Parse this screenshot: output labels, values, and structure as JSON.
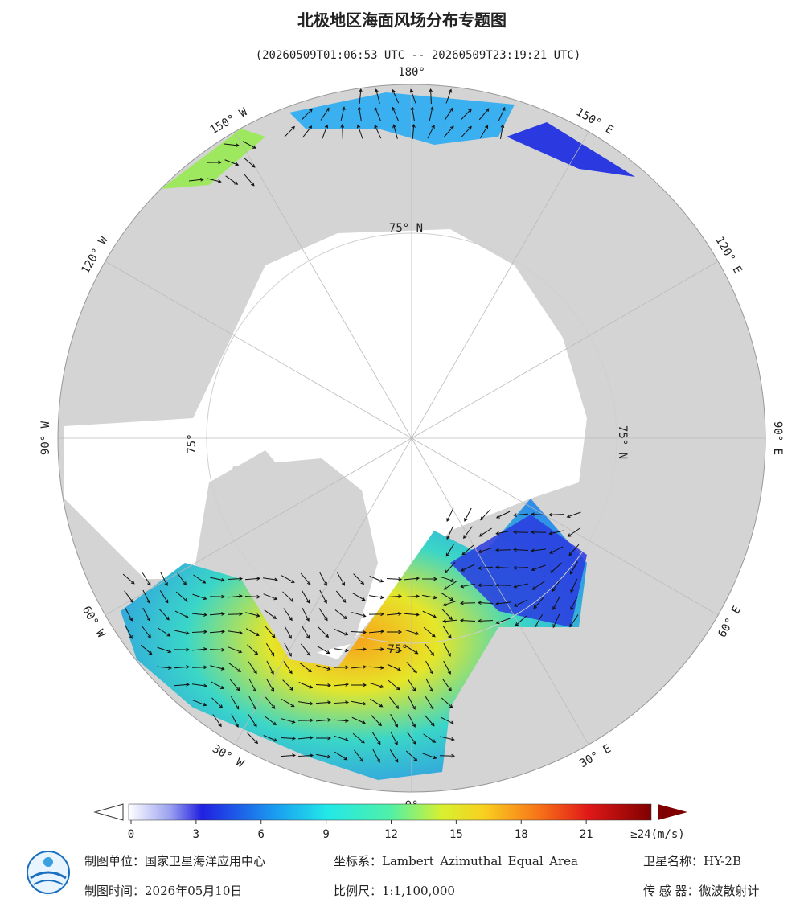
{
  "header": {
    "title": "北极地区海面风场分布专题图",
    "subtitle": "(20260509T01:06:53 UTC -- 20260509T23:19:21 UTC)"
  },
  "longitude_labels": [
    "180°",
    "150° E",
    "120° E",
    "90° E",
    "60° E",
    "30° E",
    "0°",
    "30° W",
    "60° W",
    "90° W",
    "120° W",
    "150° W"
  ],
  "latitude_labels": [
    "75° N",
    "75° N",
    "75°",
    "75°"
  ],
  "colorbar": {
    "ticks": [
      0,
      3,
      6,
      9,
      12,
      15,
      18,
      21
    ],
    "max_label": "≥24(m/s)"
  },
  "footer": [
    {
      "label": "制图单位：",
      "value": "国家卫星海洋应用中心"
    },
    {
      "label": "坐标系：",
      "value": "Lambert_Azimuthal_Equal_Area"
    },
    {
      "label": "卫星名称：",
      "value": "HY-2B"
    },
    {
      "label": "制图时间：",
      "value": "2026年05月10日"
    },
    {
      "label": "比例尺：",
      "value": "1:1,100,000"
    },
    {
      "label": "传 感 器：",
      "value": "微波散射计"
    }
  ]
}
